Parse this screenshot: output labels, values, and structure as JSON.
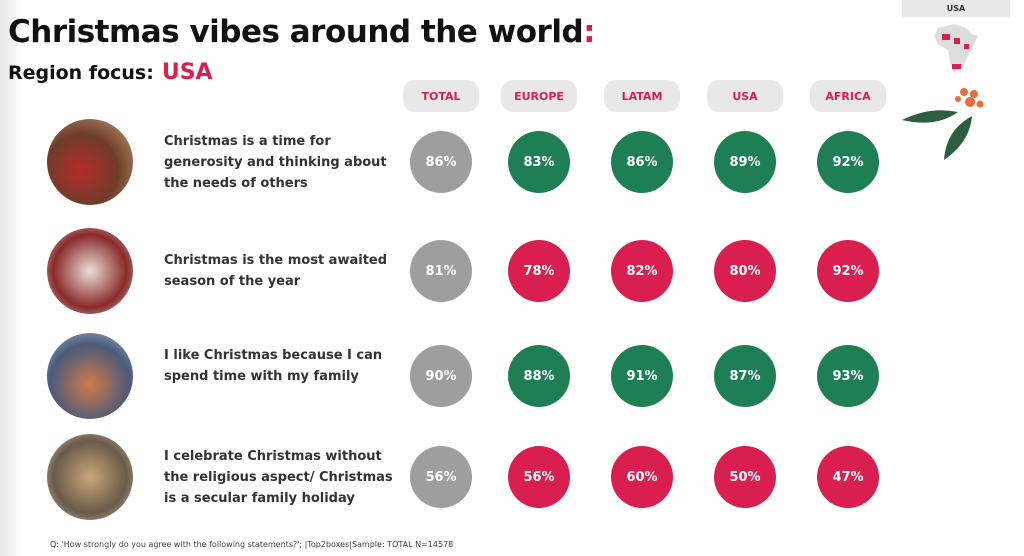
{
  "title": "Christmas vibes around the world",
  "title_colon": ":",
  "subtitle_label": "Region focus:",
  "subtitle_region": "USA",
  "corner_tag": "USA",
  "columns": [
    "TOTAL",
    "EUROPE",
    "LATAM",
    "USA",
    "AFRICA"
  ],
  "colors": {
    "total": "#9e9e9e",
    "above": "#1e7f55",
    "below": "#d81f4f",
    "accent": "#d81f4f"
  },
  "rows": [
    {
      "statement": "Christmas is a time for generosity and thinking about the needs of others",
      "values": [
        "86%",
        "83%",
        "86%",
        "89%",
        "92%"
      ],
      "colors": [
        "total",
        "above",
        "above",
        "above",
        "above"
      ]
    },
    {
      "statement": "Christmas is the most awaited season of the year",
      "values": [
        "81%",
        "78%",
        "82%",
        "80%",
        "92%"
      ],
      "colors": [
        "total",
        "below",
        "below",
        "below",
        "below"
      ]
    },
    {
      "statement": "I like Christmas because I can spend time with my family",
      "values": [
        "90%",
        "88%",
        "91%",
        "87%",
        "93%"
      ],
      "colors": [
        "total",
        "above",
        "above",
        "above",
        "above"
      ]
    },
    {
      "statement": "I celebrate Christmas without the religious aspect/ Christmas is a secular family holiday",
      "values": [
        "56%",
        "56%",
        "60%",
        "50%",
        "47%"
      ],
      "colors": [
        "total",
        "below",
        "below",
        "below",
        "below"
      ]
    }
  ],
  "footnote": "Q: 'How strongly do you agree with the following statements?'; |Top2boxes|Sample: TOTAL N=14578"
}
